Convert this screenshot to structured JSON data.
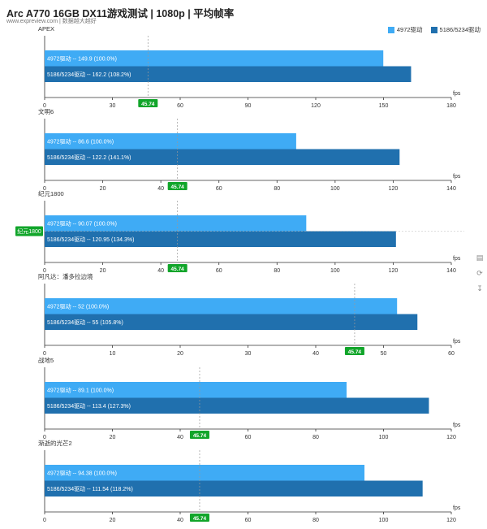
{
  "header": {
    "title": "Arc A770 16GB DX11游戏测试 | 1080p | 平均帧率",
    "subtitle": "www.expreview.com | 数据越大越好"
  },
  "legend": [
    {
      "label": "4972驱动",
      "color": "#3fabf5"
    },
    {
      "label": "5186/5234驱动",
      "color": "#2070ae"
    }
  ],
  "colors": {
    "marker": "#11a52a",
    "grid": "#d9d9d9",
    "axis": "#333333"
  },
  "side_icons": [
    "document-icon",
    "refresh-icon",
    "download-icon"
  ],
  "chart_data": [
    {
      "type": "bar",
      "orientation": "horizontal",
      "title": "APEX",
      "xlabel": "fps",
      "xlim": [
        0,
        180
      ],
      "ticks": [
        0,
        30,
        60,
        90,
        120,
        150,
        180
      ],
      "marker": "45.74",
      "marker_value": 45.74,
      "series": [
        {
          "name": "4972驱动",
          "value": 149.9,
          "label": "4972驱动  --  149.9 (100.0%)"
        },
        {
          "name": "5186/5234驱动",
          "value": 162.2,
          "label": "5186/5234驱动  --  162.2 (108.2%)"
        }
      ]
    },
    {
      "type": "bar",
      "orientation": "horizontal",
      "title": "文明6",
      "xlabel": "fps",
      "xlim": [
        0,
        140
      ],
      "ticks": [
        0,
        20,
        40,
        60,
        80,
        100,
        120,
        140
      ],
      "marker": "45.74",
      "marker_value": 45.74,
      "series": [
        {
          "name": "4972驱动",
          "value": 86.6,
          "label": "4972驱动  --  86.6 (100.0%)"
        },
        {
          "name": "5186/5234驱动",
          "value": 122.2,
          "label": "5186/5234驱动  --  122.2 (141.1%)"
        }
      ]
    },
    {
      "type": "bar",
      "orientation": "horizontal",
      "title": "纪元1800",
      "xlabel": "fps",
      "xlim": [
        0,
        140
      ],
      "ticks": [
        0,
        20,
        40,
        60,
        80,
        100,
        120,
        140
      ],
      "marker": "45.74",
      "marker_value": 45.74,
      "y_marker": "纪元1800",
      "series": [
        {
          "name": "4972驱动",
          "value": 90.07,
          "label": "4972驱动  --  90.07 (100.0%)"
        },
        {
          "name": "5186/5234驱动",
          "value": 120.95,
          "label": "5186/5234驱动  --  120.95 (134.3%)"
        }
      ]
    },
    {
      "type": "bar",
      "orientation": "horizontal",
      "title": "阿凡达：潘多拉边境",
      "xlabel": "fps",
      "xlim": [
        0,
        60
      ],
      "ticks": [
        0,
        10,
        20,
        30,
        40,
        50,
        60
      ],
      "marker": "45.74",
      "marker_value": 45.74,
      "series": [
        {
          "name": "4972驱动",
          "value": 52,
          "label": "4972驱动  --  52 (100.0%)"
        },
        {
          "name": "5186/5234驱动",
          "value": 55,
          "label": "5186/5234驱动  --  55 (105.8%)"
        }
      ]
    },
    {
      "type": "bar",
      "orientation": "horizontal",
      "title": "战地5",
      "xlabel": "fps",
      "xlim": [
        0,
        120
      ],
      "ticks": [
        0,
        20,
        40,
        60,
        80,
        100,
        120
      ],
      "marker": "45.74",
      "marker_value": 45.74,
      "series": [
        {
          "name": "4972驱动",
          "value": 89.1,
          "label": "4972驱动  --  89.1 (100.0%)"
        },
        {
          "name": "5186/5234驱动",
          "value": 113.4,
          "label": "5186/5234驱动  --  113.4 (127.3%)"
        }
      ]
    },
    {
      "type": "bar",
      "orientation": "horizontal",
      "title": "渐逝的光芒2",
      "xlabel": "fps",
      "xlim": [
        0,
        120
      ],
      "ticks": [
        0,
        20,
        40,
        60,
        80,
        100,
        120
      ],
      "marker": "45.74",
      "marker_value": 45.74,
      "series": [
        {
          "name": "4972驱动",
          "value": 94.38,
          "label": "4972驱动  --  94.38 (100.0%)"
        },
        {
          "name": "5186/5234驱动",
          "value": 111.54,
          "label": "5186/5234驱动  --  111.54 (118.2%)"
        }
      ]
    }
  ]
}
